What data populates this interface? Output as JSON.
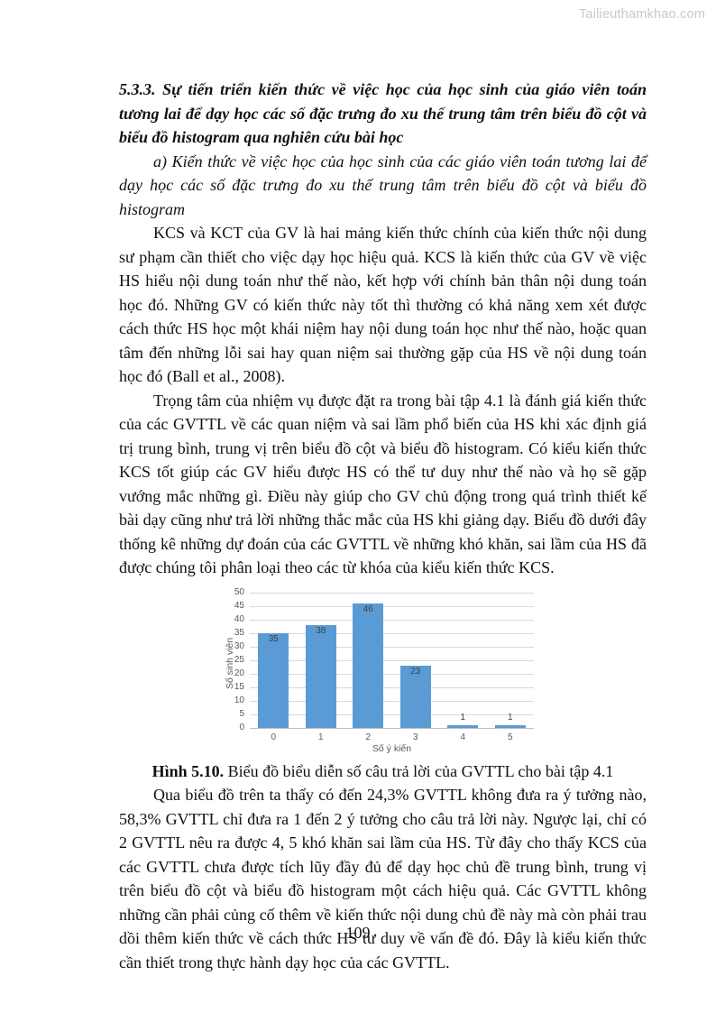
{
  "watermark": "Tailieuthamkhao.com",
  "page": {
    "number": "109"
  },
  "heading": "5.3.3. Sự tiến triển kiến thức về việc học của học sinh của giáo viên toán tương lai để dạy học các số đặc trưng đo xu thế trung tâm trên biểu đồ cột và biểu đồ histogram qua nghiên cứu bài học",
  "subheading": "a) Kiến thức về việc học của học sinh của các giáo viên toán tương lai để dạy học các số đặc trưng đo xu thế trung tâm trên biểu đồ cột và biểu đồ histogram",
  "paragraphs": [
    "KCS và KCT của GV là hai mảng kiến thức chính của kiến thức nội dung sư phạm cần thiết cho việc dạy học hiệu quả. KCS là kiến thức của GV về việc HS hiểu nội dung toán như thế nào, kết hợp với chính bản thân nội dung toán học đó. Những GV có kiến thức này tốt thì thường có khả năng xem xét được cách thức HS học một khái niệm hay nội dung toán học như thế nào, hoặc quan tâm đến những lỗi sai hay quan niệm sai thường gặp của HS về nội dung toán học đó (Ball et al., 2008).",
    "Trọng tâm của nhiệm vụ được đặt ra trong bài tập 4.1 là đánh giá kiến thức của các GVTTL về các quan niệm và sai lầm phổ biến của HS khi xác định giá trị trung bình, trung vị trên biểu đồ cột và biểu đồ histogram. Có kiểu kiến thức KCS tốt giúp các GV hiểu được HS có thể tư duy như thế nào và họ sẽ gặp vướng mắc những gì. Điều này giúp cho GV chủ động trong quá trình thiết kế bài dạy cũng như trả lời những thắc mắc của HS khi giảng dạy. Biểu đồ dưới đây thống kê những dự đoán của các GVTTL về những khó khăn, sai lầm của HS đã được chúng tôi phân loại theo các từ khóa của kiểu kiến thức KCS."
  ],
  "figure": {
    "caption_label": "Hình 5.10.",
    "caption_text": " Biểu đồ biểu diễn số câu trả lời của GVTTL cho bài tập 4.1"
  },
  "paragraph_after": "Qua biểu đồ trên ta thấy có đến 24,3% GVTTL không đưa ra ý tưởng nào, 58,3% GVTTL chỉ đưa ra 1 đến 2 ý tưởng cho câu trả lời này. Ngược lại, chỉ có 2 GVTTL nêu ra được 4, 5 khó khăn sai lầm của HS. Từ đây cho thấy KCS của các GVTTL chưa được tích lũy đầy đủ để dạy học chủ đề trung bình, trung vị trên biểu đồ cột và biểu đồ histogram một cách hiệu quả. Các GVTTL không những cần phải củng cố thêm về kiến thức nội dung chủ đề này mà còn phải trau dồi thêm kiến thức về cách thức HS tư duy về vấn đề đó. Đây là kiểu kiến thức cần thiết trong thực hành dạy học của các GVTTL.",
  "chart_data": {
    "type": "bar",
    "categories": [
      "0",
      "1",
      "2",
      "3",
      "4",
      "5"
    ],
    "values": [
      35,
      38,
      46,
      23,
      1,
      1
    ],
    "title": "",
    "xlabel": "Số ý kiến",
    "ylabel": "Số sinh viên",
    "ylim": [
      0,
      50
    ],
    "ytick_step": 5,
    "grid": true,
    "legend": "none",
    "bar_color": "#5b9bd5",
    "gridline_color": "#d9d9d9",
    "axis_text_color": "#595959",
    "data_label_color": "#404040"
  }
}
